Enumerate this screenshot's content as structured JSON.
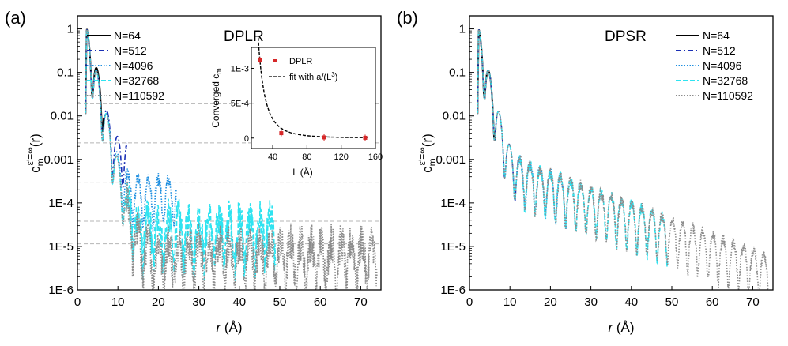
{
  "figure": {
    "x_label_var": "r",
    "x_label_unit": " (Å)",
    "y_label": "c′m(r)"
  },
  "chart_data": [
    {
      "type": "line",
      "panel_label": "(a)",
      "title": "DPLR",
      "xlabel": "r (Å)",
      "ylabel": "c_m^{ε′=∞}(r)",
      "xlim": [
        0,
        75
      ],
      "ylim": [
        1e-06,
        2
      ],
      "yscale": "log",
      "x_ticks": [
        "0",
        "10",
        "20",
        "30",
        "40",
        "50",
        "60",
        "70"
      ],
      "y_ticks": [
        "1",
        "0.1",
        "0.01",
        "0.001",
        "1E-4",
        "1E-5",
        "1E-6"
      ],
      "legend_position": "top-left",
      "series": [
        {
          "name": "N=64",
          "color": "#000000",
          "style": "solid",
          "r_max": 6.5,
          "plateau": 0.02
        },
        {
          "name": "N=512",
          "color": "#1a2fb5",
          "style": "dashdot",
          "r_max": 12.2,
          "plateau": 0.0023
        },
        {
          "name": "N=4096",
          "color": "#1e8fe0",
          "style": "dotted",
          "r_max": 24.5,
          "plateau": 0.00034
        },
        {
          "name": "N=32768",
          "color": "#2fe3f0",
          "style": "dashed",
          "r_max": 49.0,
          "plateau": 4.5e-05
        },
        {
          "name": "N=110592",
          "color": "#8c8c8c",
          "style": "dotted",
          "r_max": 74.0,
          "plateau": 1.3e-05
        }
      ],
      "reference_lines_y": [
        0.019,
        0.0024,
        0.0003,
        3.8e-05,
        1.15e-05
      ],
      "inset": {
        "type": "scatter",
        "xlabel": "L (Å)",
        "ylabel": "Converged c",
        "ylabel_sub": "m",
        "xlim": [
          15,
          160
        ],
        "ylim": [
          -0.00015,
          0.0013
        ],
        "x_ticks": [
          "40",
          "80",
          "120",
          "160"
        ],
        "y_ticks": [
          "0",
          "5E-4",
          "1E-3"
        ],
        "y_tick_values": [
          0,
          0.0005,
          0.001
        ],
        "points": [
          {
            "L": 25,
            "c": 0.00112
          },
          {
            "L": 50,
            "c": 7e-05
          },
          {
            "L": 100,
            "c": 9e-06
          },
          {
            "L": 148,
            "c": 3.5e-06
          }
        ],
        "fit_label": "fit with a/(L",
        "fit_label_exp": "3",
        "fit_label_end": ")",
        "legend_points": "DPLR",
        "fit_a": 17.5
      }
    },
    {
      "type": "line",
      "panel_label": "(b)",
      "title": "DPSR",
      "xlabel": "r (Å)",
      "ylabel": "c_m^{ε′=∞}(r)",
      "xlim": [
        0,
        75
      ],
      "ylim": [
        1e-06,
        2
      ],
      "yscale": "log",
      "x_ticks": [
        "0",
        "10",
        "20",
        "30",
        "40",
        "50",
        "60",
        "70"
      ],
      "y_ticks": [
        "1",
        "0.1",
        "0.01",
        "0.001",
        "1E-4",
        "1E-5",
        "1E-6"
      ],
      "legend_position": "top-right",
      "series": [
        {
          "name": "N=64",
          "color": "#000000",
          "style": "solid",
          "r_max": 6.5
        },
        {
          "name": "N=512",
          "color": "#1a2fb5",
          "style": "dashdot",
          "r_max": 12.2
        },
        {
          "name": "N=4096",
          "color": "#1e8fe0",
          "style": "dotted",
          "r_max": 24.5
        },
        {
          "name": "N=32768",
          "color": "#2fe3f0",
          "style": "dashed",
          "r_max": 49.0
        },
        {
          "name": "N=110592",
          "color": "#8c8c8c",
          "style": "dotted",
          "r_max": 74.0
        }
      ]
    }
  ]
}
